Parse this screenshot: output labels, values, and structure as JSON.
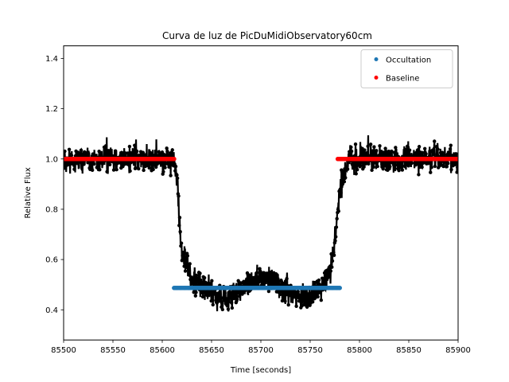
{
  "chart_data": {
    "type": "scatter",
    "title": "Curva de luz de PicDuMidiObservatory60cm",
    "xlabel": "Time [seconds]",
    "ylabel": "Relative Flux",
    "xlim": [
      85500,
      85900
    ],
    "ylim": [
      0.28,
      1.45
    ],
    "xticks": [
      85500,
      85550,
      85600,
      85650,
      85700,
      85750,
      85800,
      85850,
      85900
    ],
    "yticks": [
      0.4,
      0.6,
      0.8,
      1.0,
      1.2,
      1.4
    ],
    "xtick_labels": [
      "85500",
      "85550",
      "85600",
      "85650",
      "85700",
      "85750",
      "85800",
      "85850",
      "85900"
    ],
    "ytick_labels": [
      "0.4",
      "0.6",
      "0.8",
      "1.0",
      "1.2",
      "1.4"
    ],
    "grid": false,
    "legend_position": "top-right",
    "colors": {
      "lightcurve": "#000000",
      "occultation": "#1f77b4",
      "baseline": "#ff0000"
    },
    "series": [
      {
        "type": "line",
        "description_points": [
          [
            85500,
            1.0
          ],
          [
            85612,
            1.0
          ],
          [
            85615,
            0.9
          ],
          [
            85620,
            0.62
          ],
          [
            85630,
            0.52
          ],
          [
            85650,
            0.46
          ],
          [
            85665,
            0.44
          ],
          [
            85685,
            0.5
          ],
          [
            85700,
            0.53
          ],
          [
            85712,
            0.52
          ],
          [
            85725,
            0.47
          ],
          [
            85745,
            0.45
          ],
          [
            85765,
            0.5
          ],
          [
            85773,
            0.6
          ],
          [
            85778,
            0.8
          ],
          [
            85785,
            0.97
          ],
          [
            85790,
            1.0
          ],
          [
            85900,
            1.0
          ]
        ],
        "scatter": 0.045
      },
      {
        "name": "Occultation",
        "type": "scatter",
        "x_range": [
          85612,
          85780
        ],
        "y": 0.487
      },
      {
        "name": "Baseline",
        "type": "scatter",
        "segments": [
          [
            85500,
            85612
          ],
          [
            85778,
            85900
          ]
        ],
        "y": 1.0
      }
    ]
  }
}
